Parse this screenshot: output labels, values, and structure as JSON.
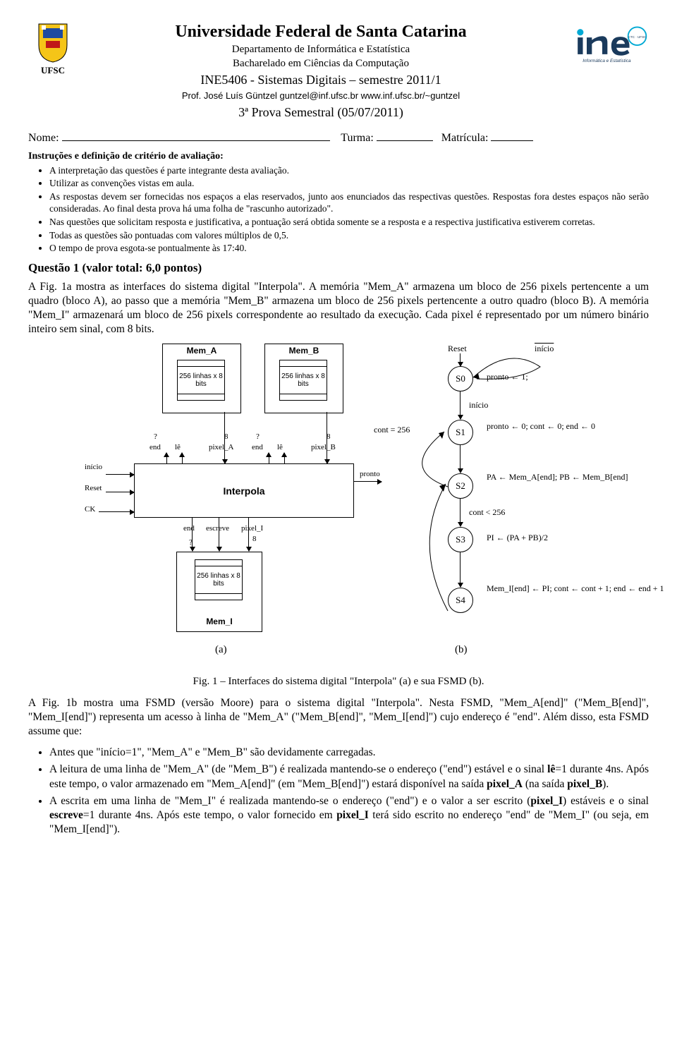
{
  "header": {
    "university": "Universidade Federal de Santa Catarina",
    "department": "Departamento de Informática e Estatística",
    "program": "Bacharelado em Ciências da Computação",
    "course": "INE5406 - Sistemas Digitais – semestre 2011/1",
    "professor": "Prof. José Luís Güntzel  guntzel@inf.ufsc.br  www.inf.ufsc.br/~guntzel",
    "exam": "3ª Prova Semestral (05/07/2011)",
    "logo_left_text": "UFSC",
    "logo_right_line1": "ine",
    "logo_right_line2": "Informática e Estatística",
    "logo_right_badge": "CTC · UFSC"
  },
  "fields": {
    "nome": "Nome:",
    "turma": "Turma:",
    "matricula": "Matrícula:"
  },
  "instructions": {
    "title": "Instruções e definição de critério de avaliação:",
    "items": [
      "A interpretação das questões é parte integrante desta avaliação.",
      "Utilizar as convenções vistas em aula.",
      "As respostas devem ser fornecidas nos espaços a elas reservados, junto aos enunciados das respectivas questões. Respostas fora destes espaços não serão consideradas. Ao final desta prova há uma folha de \"rascunho autorizado\".",
      "Nas questões que solicitam resposta e justificativa, a pontuação será obtida somente se a resposta e a respectiva justificativa estiverem corretas.",
      "Todas as questões são pontuadas com valores múltiplos de 0,5.",
      "O tempo de prova esgota-se pontualmente às 17:40."
    ]
  },
  "question1": {
    "title": "Questão 1 (valor total: 6,0 pontos)",
    "para1": "A Fig. 1a mostra as interfaces do sistema digital \"Interpola\". A memória \"Mem_A\" armazena um bloco de 256 pixels pertencente a um quadro (bloco A), ao passo que a memória \"Mem_B\" armazena um bloco de 256 pixels pertencente a outro quadro (bloco B). A memória \"Mem_I\" armazenará um bloco de 256 pixels correspondente ao resultado da execução. Cada pixel é representado por um número binário inteiro sem sinal, com 8 bits."
  },
  "figure": {
    "caption": "Fig. 1 – Interfaces do sistema digital \"Interpola\" (a) e sua FSMD (b).",
    "label_a": "(a)",
    "label_b": "(b)",
    "mem_A": "Mem_A",
    "mem_B": "Mem_B",
    "mem_I": "Mem_I",
    "mem_size": "256 linhas x 8 bits",
    "interpola": "Interpola",
    "signals": {
      "q": "?",
      "end": "end",
      "le": "lê",
      "eight": "8",
      "pixel_A": "pixel_A",
      "pixel_B": "pixel_B",
      "pixel_I": "pixel_I",
      "escreve": "escreve",
      "inicio": "início",
      "reset": "Reset",
      "ck": "CK",
      "pronto": "pronto",
      "cont256": "cont = 256",
      "contlt256": "cont < 256"
    },
    "fsmd": {
      "reset": "Reset",
      "inicio_bar": "início",
      "inicio": "início",
      "s0": "S0",
      "s0_out": "pronto ← 1;",
      "s1": "S1",
      "s1_out": "pronto ← 0; cont ← 0; end ← 0",
      "s2": "S2",
      "s2_out": "PA ← Mem_A[end]; PB ← Mem_B[end]",
      "s3": "S3",
      "s3_out": "PI ← (PA + PB)/2",
      "s4": "S4",
      "s4_out": "Mem_I[end] ← PI; cont ← cont + 1; end ← end + 1"
    }
  },
  "para2": "A Fig. 1b mostra uma FSMD (versão Moore) para o sistema digital \"Interpola\". Nesta FSMD, \"Mem_A[end]\" (\"Mem_B[end]\", \"Mem_I[end]\") representa um acesso à linha de \"Mem_A\" (\"Mem_B[end]\", \"Mem_I[end]\") cujo endereço é \"end\". Além disso, esta FSMD assume que:",
  "assumptions": [
    "Antes que \"início=1\", \"Mem_A\" e \"Mem_B\" são devidamente carregadas.",
    "A leitura de uma linha de \"Mem_A\" (de \"Mem_B\") é realizada mantendo-se o endereço (\"end\") estável e o sinal lê=1 durante 4ns. Após este tempo, o valor armazenado em \"Mem_A[end]\" (em \"Mem_B[end]\") estará disponível na saída pixel_A (na saída pixel_B).",
    "A escrita em uma linha de \"Mem_I\" é realizada mantendo-se o endereço (\"end\") e o valor a ser escrito (pixel_I) estáveis e o sinal escreve=1 durante 4ns. Após este tempo, o valor fornecido em pixel_I terá sido escrito no endereço \"end\" de \"Mem_I\" (ou seja, em \"Mem_I[end]\")."
  ],
  "colors": {
    "text": "#000000",
    "bg": "#ffffff",
    "ine_cyan": "#00a9d4",
    "ine_dark": "#1a3a5c",
    "shield_blue": "#1e4ba0",
    "shield_yellow": "#f5c518",
    "shield_red": "#c01818"
  }
}
